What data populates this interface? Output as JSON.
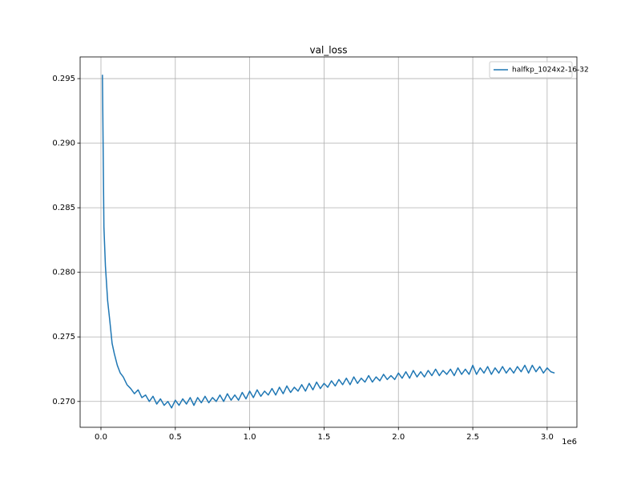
{
  "chart_data": {
    "type": "line",
    "title": "val_loss",
    "x_offset_label": "1e6",
    "x": [
      10000,
      20000,
      30000,
      45000,
      60000,
      75000,
      90000,
      110000,
      130000,
      150000,
      175000,
      200000,
      225000,
      250000,
      275000,
      300000,
      325000,
      350000,
      375000,
      400000,
      425000,
      450000,
      475000,
      500000,
      525000,
      550000,
      575000,
      600000,
      625000,
      650000,
      675000,
      700000,
      725000,
      750000,
      775000,
      800000,
      825000,
      850000,
      875000,
      900000,
      925000,
      950000,
      975000,
      1000000,
      1025000,
      1050000,
      1075000,
      1100000,
      1125000,
      1150000,
      1175000,
      1200000,
      1225000,
      1250000,
      1275000,
      1300000,
      1325000,
      1350000,
      1375000,
      1400000,
      1425000,
      1450000,
      1475000,
      1500000,
      1525000,
      1550000,
      1575000,
      1600000,
      1625000,
      1650000,
      1675000,
      1700000,
      1725000,
      1750000,
      1775000,
      1800000,
      1825000,
      1850000,
      1875000,
      1900000,
      1925000,
      1950000,
      1975000,
      2000000,
      2025000,
      2050000,
      2075000,
      2100000,
      2125000,
      2150000,
      2175000,
      2200000,
      2225000,
      2250000,
      2275000,
      2300000,
      2325000,
      2350000,
      2375000,
      2400000,
      2425000,
      2450000,
      2475000,
      2500000,
      2525000,
      2550000,
      2575000,
      2600000,
      2625000,
      2650000,
      2675000,
      2700000,
      2725000,
      2750000,
      2775000,
      2800000,
      2825000,
      2850000,
      2875000,
      2900000,
      2925000,
      2950000,
      2975000,
      3000000,
      3025000,
      3050000
    ],
    "series": [
      {
        "name": "halfkp_1024x2-16-32",
        "color": "#1f77b4",
        "values": [
          0.2953,
          0.2835,
          0.2805,
          0.2778,
          0.2762,
          0.2745,
          0.2737,
          0.2728,
          0.2722,
          0.2719,
          0.2713,
          0.271,
          0.2706,
          0.2709,
          0.2703,
          0.2705,
          0.27,
          0.2704,
          0.2698,
          0.2702,
          0.2697,
          0.27,
          0.2695,
          0.2701,
          0.2697,
          0.2702,
          0.2698,
          0.2703,
          0.2697,
          0.2703,
          0.2699,
          0.2704,
          0.2699,
          0.2703,
          0.27,
          0.2705,
          0.27,
          0.2706,
          0.2701,
          0.2705,
          0.2701,
          0.2707,
          0.2702,
          0.2708,
          0.2703,
          0.2709,
          0.2704,
          0.2708,
          0.2705,
          0.271,
          0.2705,
          0.2711,
          0.2706,
          0.2712,
          0.2707,
          0.2711,
          0.2708,
          0.2713,
          0.2708,
          0.2714,
          0.2709,
          0.2715,
          0.271,
          0.2714,
          0.2711,
          0.2716,
          0.2712,
          0.2717,
          0.2713,
          0.2718,
          0.2713,
          0.2719,
          0.2714,
          0.2718,
          0.2715,
          0.272,
          0.2715,
          0.2719,
          0.2716,
          0.2721,
          0.2717,
          0.272,
          0.2717,
          0.2722,
          0.2718,
          0.2723,
          0.2718,
          0.2724,
          0.2719,
          0.2723,
          0.2719,
          0.2724,
          0.272,
          0.2725,
          0.272,
          0.2724,
          0.2721,
          0.2725,
          0.272,
          0.2726,
          0.2721,
          0.2725,
          0.2721,
          0.2728,
          0.2721,
          0.2726,
          0.2722,
          0.2727,
          0.2721,
          0.2726,
          0.2722,
          0.2727,
          0.2722,
          0.2726,
          0.2722,
          0.2727,
          0.2723,
          0.2728,
          0.2722,
          0.2728,
          0.2723,
          0.2727,
          0.2722,
          0.2726,
          0.2723,
          0.2722
        ]
      }
    ],
    "xlim": [
      -140000,
      3200000
    ],
    "xticks": [
      {
        "value": 0,
        "label": "0.0"
      },
      {
        "value": 500000,
        "label": "0.5"
      },
      {
        "value": 1000000,
        "label": "1.0"
      },
      {
        "value": 1500000,
        "label": "1.5"
      },
      {
        "value": 2000000,
        "label": "2.0"
      },
      {
        "value": 2500000,
        "label": "2.5"
      },
      {
        "value": 3000000,
        "label": "3.0"
      }
    ],
    "ylim": [
      0.268,
      0.29668
    ],
    "yticks": [
      {
        "value": 0.27,
        "label": "0.270"
      },
      0.275,
      {
        "value": 0.28,
        "label": "0.280"
      },
      0.285,
      {
        "value": 0.29,
        "label": "0.290"
      },
      0.295
    ],
    "grid": true,
    "legend": "upper right"
  }
}
